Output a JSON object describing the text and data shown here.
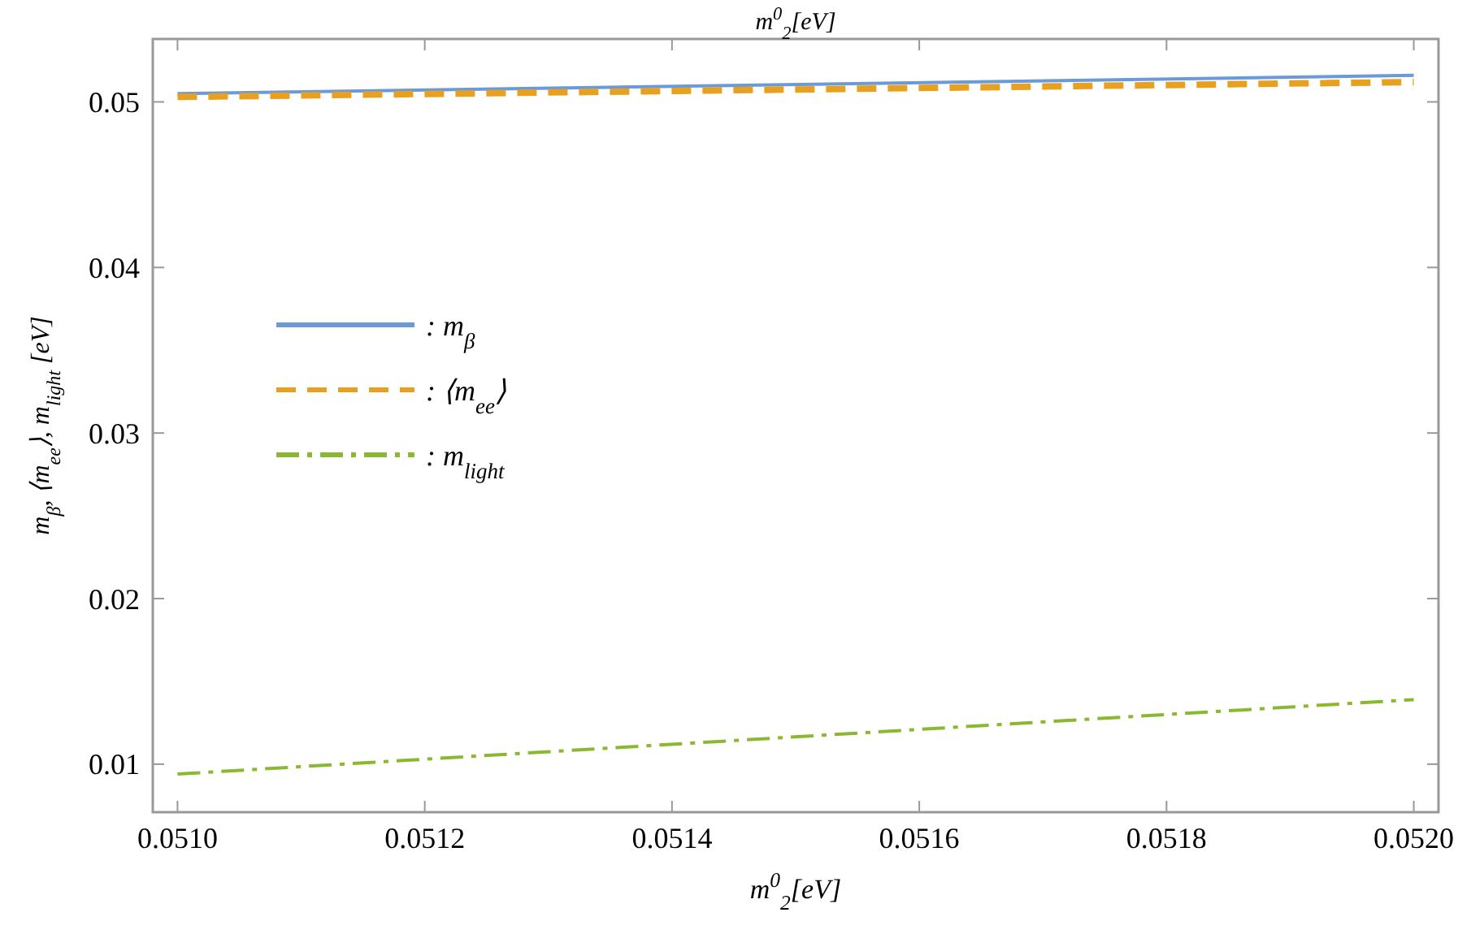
{
  "chart_data": {
    "type": "line",
    "xlabel": "m$^{0}$$_{2}$[eV]",
    "x2label": "m$^{0}$$_{2}$[eV]",
    "ylabel": "m$_{β}$, ⟨m$_{ee}$⟩, m$_{light}$ [eV]",
    "x": [
      0.051,
      0.052
    ],
    "series": [
      {
        "name": ": m$_{β}$",
        "color": "#6a9ad8",
        "line_style": "solid",
        "values": [
          0.0505,
          0.0516
        ]
      },
      {
        "name": ": ⟨m$_{ee}$⟩",
        "color": "#e8a020",
        "line_style": "dashed",
        "values": [
          0.0503,
          0.0512
        ]
      },
      {
        "name": ": m$_{light}$",
        "color": "#8ab830",
        "line_style": "dashdot",
        "values": [
          0.0094,
          0.0139
        ]
      }
    ],
    "xlim": [
      0.05098,
      0.05202
    ],
    "xticks": [
      {
        "value": 0.051,
        "label": "0.0510"
      },
      {
        "value": 0.0512,
        "label": "0.0512"
      },
      {
        "value": 0.0514,
        "label": "0.0514"
      },
      {
        "value": 0.0516,
        "label": "0.0516"
      },
      {
        "value": 0.0518,
        "label": "0.0518"
      },
      {
        "value": 0.052,
        "label": "0.0520"
      }
    ],
    "ylim": [
      0.0071,
      0.0538
    ],
    "yticks": [
      0.01,
      0.02,
      0.03,
      0.04,
      0.05
    ],
    "grid": false,
    "legend": "left"
  }
}
